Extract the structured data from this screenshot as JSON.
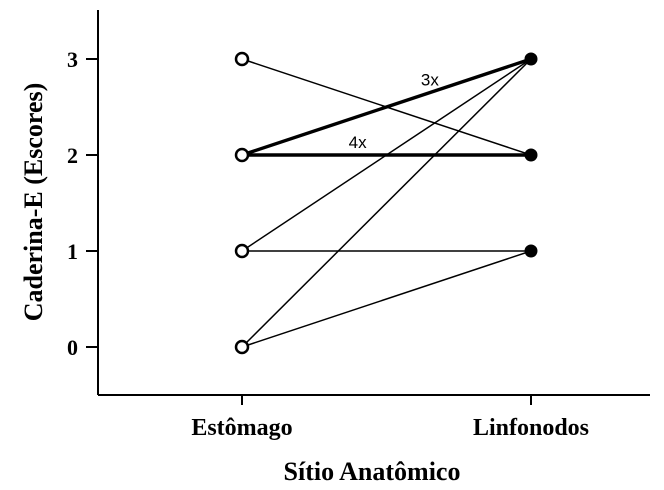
{
  "chart_data": {
    "type": "line",
    "xlabel": "Sítio Anatômico",
    "ylabel": "Caderina-E (Escores)",
    "categories": [
      "Estômago",
      "Linfonodos"
    ],
    "yticks": [
      0,
      1,
      2,
      3
    ],
    "ylim": [
      -0.5,
      3.5
    ],
    "grid": false,
    "pairs": [
      {
        "from": 3,
        "to": 2,
        "count": 1
      },
      {
        "from": 2,
        "to": 3,
        "count": 3
      },
      {
        "from": 2,
        "to": 2,
        "count": 4
      },
      {
        "from": 1,
        "to": 3,
        "count": 1
      },
      {
        "from": 1,
        "to": 1,
        "count": 1
      },
      {
        "from": 0,
        "to": 3,
        "count": 1
      },
      {
        "from": 0,
        "to": 1,
        "count": 1
      }
    ],
    "annotations": [
      {
        "text": "3x",
        "pair": 1
      },
      {
        "text": "4x",
        "pair": 2
      }
    ],
    "markers": {
      "left": "open-circle",
      "right": "filled-circle"
    }
  }
}
